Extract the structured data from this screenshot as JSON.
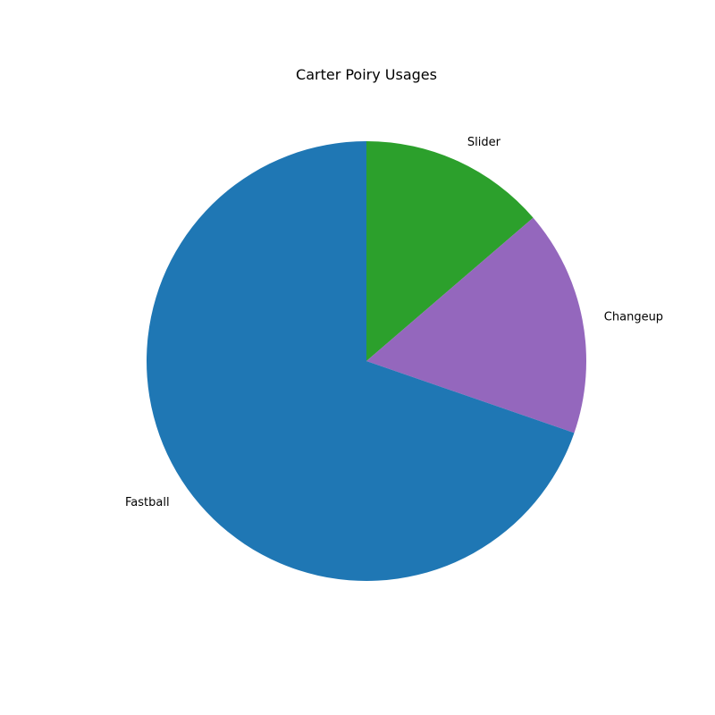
{
  "chart_data": {
    "type": "pie",
    "title": "Carter Poiry Usages",
    "start_angle_deg": 90,
    "direction": "clockwise",
    "slices": [
      {
        "label": "Slider",
        "value": 13.7,
        "color": "#2ca02c"
      },
      {
        "label": "Changeup",
        "value": 16.6,
        "color": "#9467bd"
      },
      {
        "label": "Fastball",
        "value": 69.7,
        "color": "#1f77b4"
      }
    ]
  }
}
